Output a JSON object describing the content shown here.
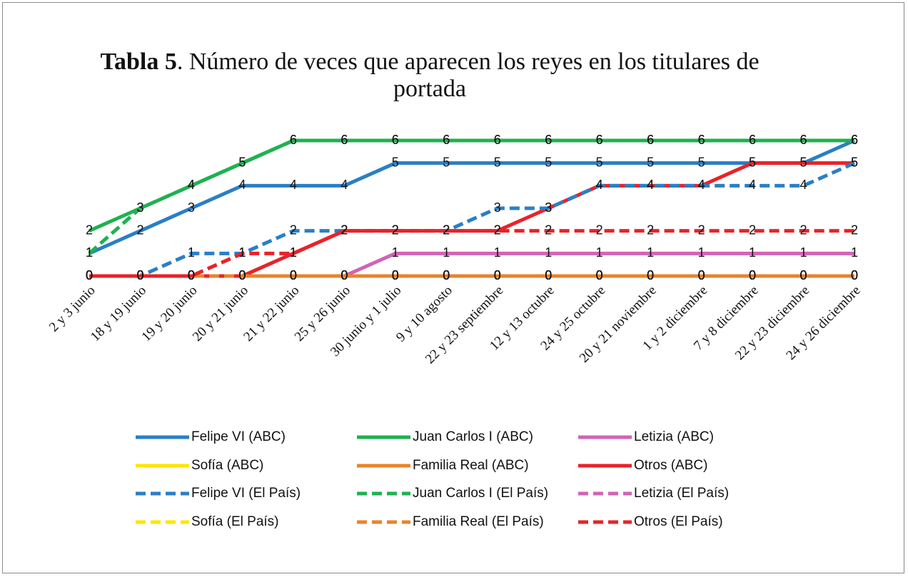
{
  "chart_data": {
    "type": "line",
    "title_bold": "Tabla 5",
    "title": ". Número de veces que aparecen los reyes en los titulares de portada",
    "categories": [
      "2 y 3 junio",
      "18 y 19 junio",
      "19 y 20 junio",
      "20 y 21 junio",
      "21 y 22 junio",
      "25 y 26 junio",
      "30 junio y 1 julio",
      "9 y 10 agosto",
      "22 y 23 septiembre",
      "12 y 13 octubre",
      "24 y 25 octubre",
      "20 y 21 noviembre",
      "1 y 2 diciembre",
      "7 y 8 diciembre",
      "22 y 23 diciembre",
      "24 y 26 diciembre"
    ],
    "ylim": [
      0,
      6
    ],
    "series": [
      {
        "name": "Felipe VI (ABC)",
        "color": "#2a7fc6",
        "dashed": false,
        "values": [
          1,
          2,
          3,
          4,
          4,
          4,
          5,
          5,
          5,
          5,
          5,
          5,
          5,
          5,
          5,
          6
        ]
      },
      {
        "name": "Juan Carlos I (ABC)",
        "color": "#1fb150",
        "dashed": false,
        "values": [
          2,
          3,
          4,
          5,
          6,
          6,
          6,
          6,
          6,
          6,
          6,
          6,
          6,
          6,
          6,
          6
        ]
      },
      {
        "name": "Letizia (ABC)",
        "color": "#d263b6",
        "dashed": false,
        "values": [
          0,
          0,
          0,
          0,
          0,
          0,
          1,
          1,
          1,
          1,
          1,
          1,
          1,
          1,
          1,
          1
        ]
      },
      {
        "name": "Sofía (ABC)",
        "color": "#ffe500",
        "dashed": false,
        "values": [
          0,
          0,
          0,
          0,
          0,
          0,
          0,
          0,
          0,
          0,
          0,
          0,
          0,
          0,
          0,
          0
        ]
      },
      {
        "name": "Familia Real (ABC)",
        "color": "#e8842c",
        "dashed": false,
        "values": [
          0,
          0,
          0,
          0,
          0,
          0,
          0,
          0,
          0,
          0,
          0,
          0,
          0,
          0,
          0,
          0
        ]
      },
      {
        "name": "Otros (ABC)",
        "color": "#ea2229",
        "dashed": false,
        "values": [
          0,
          0,
          0,
          0,
          1,
          2,
          2,
          2,
          2,
          3,
          4,
          4,
          4,
          5,
          5,
          5
        ]
      },
      {
        "name": "Felipe VI (El País)",
        "color": "#2a7fc6",
        "dashed": true,
        "values": [
          0,
          0,
          1,
          1,
          2,
          2,
          2,
          2,
          3,
          3,
          4,
          4,
          4,
          4,
          4,
          5
        ]
      },
      {
        "name": "Juan Carlos I (El País)",
        "color": "#1fb150",
        "dashed": true,
        "values": [
          1,
          3,
          4,
          5,
          6,
          6,
          6,
          6,
          6,
          6,
          6,
          6,
          6,
          6,
          6,
          6
        ]
      },
      {
        "name": "Letizia (El País)",
        "color": "#d263b6",
        "dashed": true,
        "values": [
          0,
          0,
          0,
          0,
          0,
          0,
          0,
          0,
          0,
          0,
          0,
          0,
          0,
          0,
          0,
          0
        ]
      },
      {
        "name": "Sofía (El País)",
        "color": "#ffe500",
        "dashed": true,
        "values": [
          0,
          0,
          0,
          0,
          0,
          0,
          0,
          0,
          0,
          0,
          0,
          0,
          0,
          0,
          0,
          0
        ]
      },
      {
        "name": "Familia Real (El País)",
        "color": "#e8842c",
        "dashed": true,
        "values": [
          0,
          0,
          0,
          0,
          0,
          0,
          0,
          0,
          0,
          0,
          0,
          0,
          0,
          0,
          0,
          0
        ]
      },
      {
        "name": "Otros (El País)",
        "color": "#ea2229",
        "dashed": true,
        "values": [
          0,
          0,
          0,
          1,
          1,
          2,
          2,
          2,
          2,
          2,
          2,
          2,
          2,
          2,
          2,
          2
        ]
      }
    ]
  }
}
